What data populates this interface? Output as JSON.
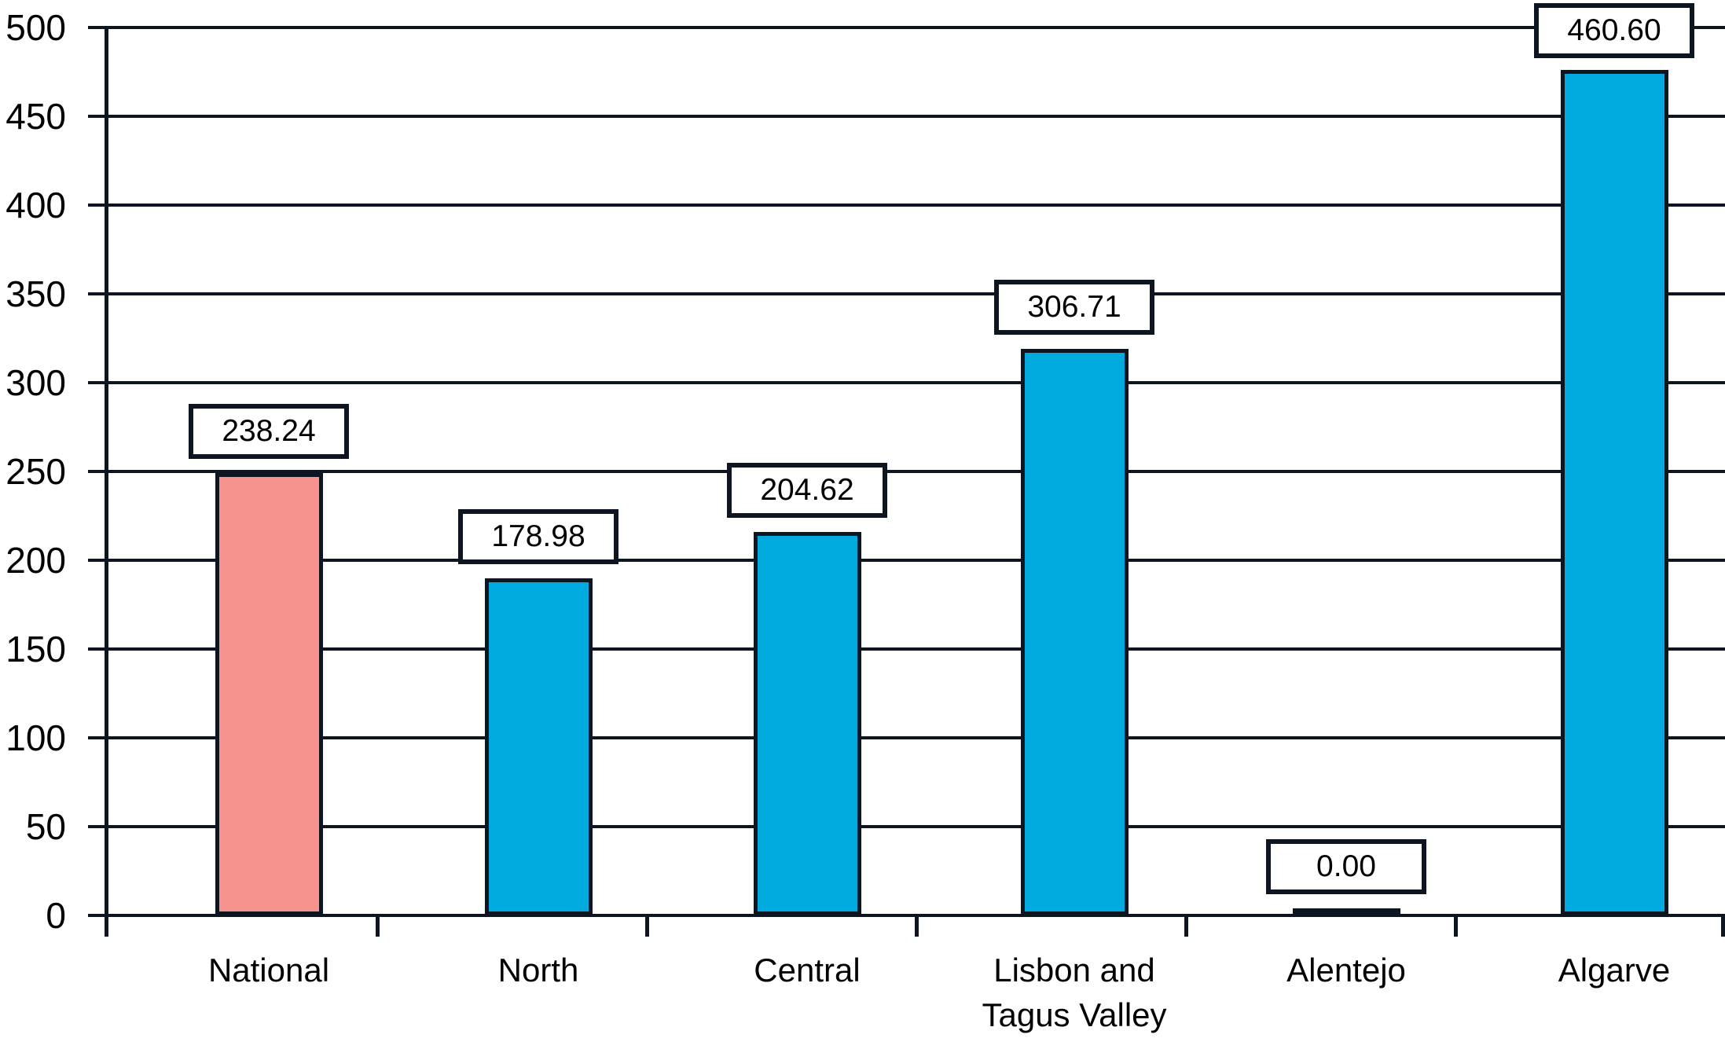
{
  "colors": {
    "background": "#ffffff",
    "line": "#0d1620",
    "text": "#000000",
    "bar_default": "#00a9de",
    "bar_highlight": "#f5928e",
    "label_box_fill": "#ffffff"
  },
  "chart_data": {
    "type": "bar",
    "title": "",
    "xlabel": "",
    "ylabel": "",
    "categories": [
      "National",
      "North",
      "Central",
      "Lisbon and Tagus Valley",
      "Alentejo",
      "Algarve"
    ],
    "values": [
      238.24,
      178.98,
      204.62,
      306.71,
      0.0,
      460.6
    ],
    "value_labels": [
      "238.24",
      "178.98",
      "204.62",
      "306.71",
      "0.00",
      "460.60"
    ],
    "bar_apparent_values": [
      249,
      190,
      216,
      319,
      4,
      476
    ],
    "highlighted_category_index": 0,
    "bar_colors": [
      "#f5928e",
      "#00a9de",
      "#00a9de",
      "#00a9de",
      "#00a9de",
      "#00a9de"
    ],
    "ylim": [
      0,
      500
    ],
    "ytick_step": 50,
    "ytick_labels": [
      "0",
      "50",
      "100",
      "150",
      "200",
      "250",
      "300",
      "350",
      "400",
      "450",
      "500"
    ],
    "grid": true,
    "legend": false,
    "value_labels_boxed": true
  }
}
